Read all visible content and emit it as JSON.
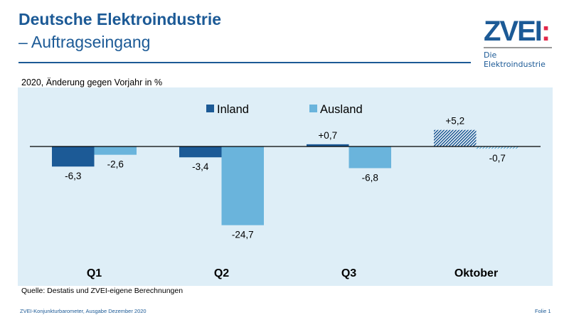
{
  "header": {
    "title_line1": "Deutsche Elektroindustrie",
    "title_line2": "– Auftragseingang"
  },
  "logo": {
    "text": "ZVEI",
    "colon": ":",
    "tagline": "Die Elektroindustrie"
  },
  "subtitle": "2020, Änderung gegen Vorjahr in %",
  "chart_data": {
    "type": "bar",
    "categories": [
      "Q1",
      "Q2",
      "Q3",
      "Oktober"
    ],
    "series": [
      {
        "name": "Inland",
        "color": "#1c5a96",
        "values": [
          -6.3,
          -3.4,
          0.7,
          5.2
        ],
        "labels": [
          "-6,3",
          "-3,4",
          "+0,7",
          "+5,2"
        ]
      },
      {
        "name": "Ausland",
        "color": "#6ab4dc",
        "values": [
          -2.6,
          -24.7,
          -6.8,
          -0.7
        ],
        "labels": [
          "-2,6",
          "-24,7",
          "-6,8",
          "-0,7"
        ]
      }
    ],
    "hatched_category": "Oktober",
    "legend": "top-center",
    "background": "#deeef7",
    "grid": false
  },
  "source": "Quelle: Destatis und ZVEI-eigene Berechnungen",
  "footer": {
    "left": "ZVEI-Konjunkturbarometer, Ausgabe Dezember 2020",
    "right": "Folie 1"
  }
}
